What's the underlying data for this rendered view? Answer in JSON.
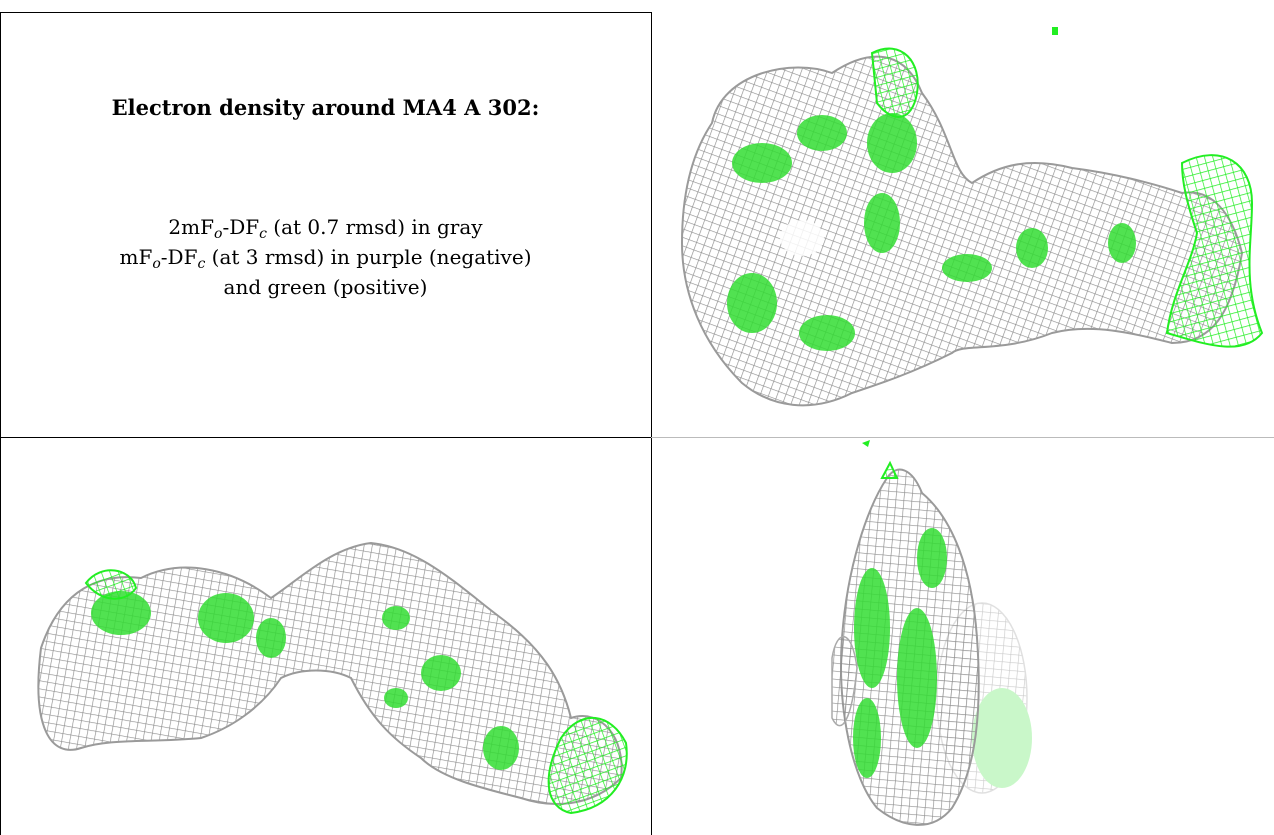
{
  "figure": {
    "title": "Electron density around MA4 A 302:",
    "legend_line1": {
      "prefix": "2mF",
      "sub1": "o",
      "mid": "-DF",
      "sub2": "c",
      "suffix": " (at 0.7 rmsd) in gray"
    },
    "legend_line2": {
      "prefix": "mF",
      "sub1": "o",
      "mid": "-DF",
      "sub2": "c",
      "suffix": " (at 3 rmsd) in purple (negative)"
    },
    "legend_line3": "and green (positive)"
  },
  "colors": {
    "mesh_gray": "#9a9a9a",
    "mesh_green": "#22ee22",
    "blob_green": "#33dd33",
    "grid_lines": "#000000"
  },
  "panels": [
    {
      "view": "front",
      "name": "density-view-1"
    },
    {
      "view": "side",
      "name": "density-view-2"
    },
    {
      "view": "end",
      "name": "density-view-3"
    }
  ]
}
